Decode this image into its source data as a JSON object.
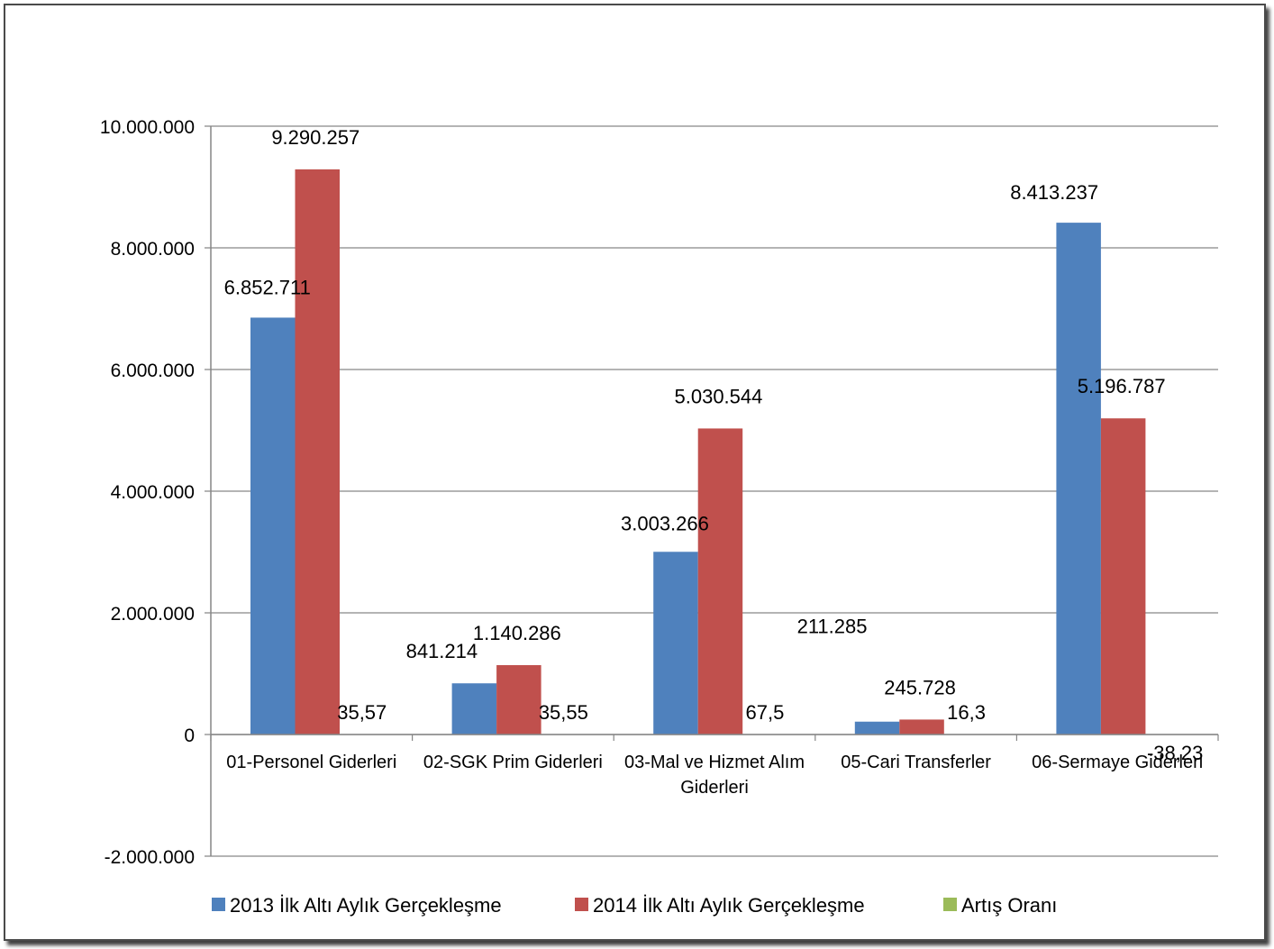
{
  "chart_data": {
    "type": "bar",
    "title": "",
    "xlabel": "",
    "ylabel": "",
    "ylim": [
      -2000000,
      10000000
    ],
    "yticks": [
      -2000000,
      0,
      2000000,
      4000000,
      6000000,
      8000000,
      10000000
    ],
    "ytick_labels": [
      "-2.000.000",
      "0",
      "2.000.000",
      "4.000.000",
      "6.000.000",
      "8.000.000",
      "10.000.000"
    ],
    "grid": true,
    "legend_position": "bottom",
    "categories": [
      [
        "01-Personel Giderleri"
      ],
      [
        "02-SGK Prim Giderleri"
      ],
      [
        "03-Mal ve Hizmet Alım",
        "Giderleri"
      ],
      [
        "05-Cari Transferler"
      ],
      [
        "06-Sermaye Giderleri"
      ]
    ],
    "series": [
      {
        "name": "2013 İlk Altı Aylık Gerçekleşme",
        "color": "#4F81BD",
        "values": [
          6852711,
          841214,
          3003266,
          211285,
          8413237
        ],
        "labels": [
          "6.852.711",
          "841.214",
          "3.003.266",
          "211.285",
          "8.413.237"
        ]
      },
      {
        "name": "2014 İlk Altı Aylık Gerçekleşme",
        "color": "#C0504D",
        "values": [
          9290257,
          1140286,
          5030544,
          245728,
          5196787
        ],
        "labels": [
          "9.290.257",
          "1.140.286",
          "5.030.544",
          "245.728",
          "5.196.787"
        ]
      },
      {
        "name": "Artış Oranı",
        "color": "#9BBB59",
        "values": [
          35.57,
          35.55,
          67.5,
          16.3,
          -38.23
        ],
        "labels": [
          "35,57",
          "35,55",
          "67,5",
          "16,3",
          "-38,23"
        ]
      }
    ]
  }
}
